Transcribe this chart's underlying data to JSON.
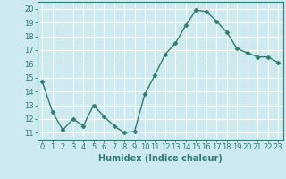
{
  "x": [
    0,
    1,
    2,
    3,
    4,
    5,
    6,
    7,
    8,
    9,
    10,
    11,
    12,
    13,
    14,
    15,
    16,
    17,
    18,
    19,
    20,
    21,
    22,
    23
  ],
  "y": [
    14.7,
    12.5,
    11.2,
    12.0,
    11.5,
    13.0,
    12.2,
    11.5,
    11.0,
    11.1,
    13.8,
    15.2,
    16.7,
    17.5,
    18.8,
    19.9,
    19.8,
    19.1,
    18.3,
    17.1,
    16.8,
    16.5,
    16.5,
    16.1
  ],
  "line_color": "#2e7d6e",
  "marker": "D",
  "markersize": 2.5,
  "linewidth": 1.0,
  "xlabel": "Humidex (Indice chaleur)",
  "xlim": [
    -0.5,
    23.5
  ],
  "ylim": [
    10.5,
    20.5
  ],
  "yticks": [
    11,
    12,
    13,
    14,
    15,
    16,
    17,
    18,
    19,
    20
  ],
  "xticks": [
    0,
    1,
    2,
    3,
    4,
    5,
    6,
    7,
    8,
    9,
    10,
    11,
    12,
    13,
    14,
    15,
    16,
    17,
    18,
    19,
    20,
    21,
    22,
    23
  ],
  "xtick_labels": [
    "0",
    "1",
    "2",
    "3",
    "4",
    "5",
    "6",
    "7",
    "8",
    "9",
    "10",
    "11",
    "12",
    "13",
    "14",
    "15",
    "16",
    "17",
    "18",
    "19",
    "20",
    "21",
    "22",
    "23"
  ],
  "background_color": "#cdeaf0",
  "grid_color": "#ffffff",
  "tick_color": "#2e7d6e",
  "label_color": "#2e7d6e",
  "xlabel_fontsize": 7,
  "tick_fontsize": 6,
  "title": ""
}
